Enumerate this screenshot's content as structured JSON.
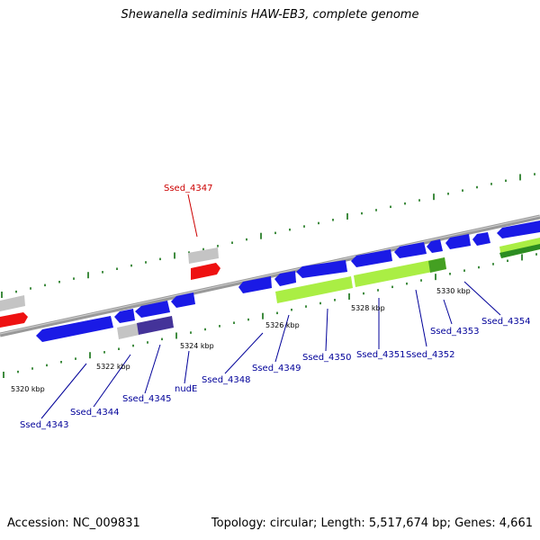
{
  "title": "Shewanella sediminis HAW-EB3, complete genome",
  "footer": {
    "accession": "Accession: NC_009831",
    "summary": "Topology: circular; Length: 5,517,674 bp; Genes: 4,661"
  },
  "scale_labels": [
    "5320 kbp",
    "5322 kbp",
    "5324 kbp",
    "5326 kbp",
    "5328 kbp",
    "5330 kbp"
  ],
  "gene_labels": [
    "Ssed_4343",
    "Ssed_4344",
    "Ssed_4345",
    "nudE",
    "Ssed_4347",
    "Ssed_4348",
    "Ssed_4349",
    "Ssed_4350",
    "Ssed_4351",
    "Ssed_4352",
    "Ssed_4353",
    "Ssed_4354"
  ],
  "colors": {
    "backbone": "#888888",
    "tick": "#006600",
    "gene_cds": "#1a1ae6",
    "gene_highlight": "#ee1111",
    "gene_rna": "#aaee44",
    "gene_gray": "#bbbbbb",
    "gene_purple": "#443399",
    "label_blue": "#000099",
    "label_red": "#cc0000"
  }
}
